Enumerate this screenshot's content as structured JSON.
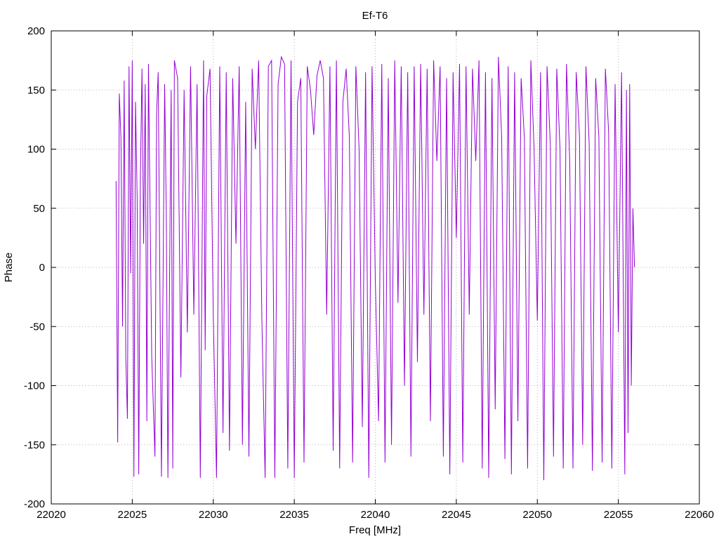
{
  "chart_data": {
    "type": "line",
    "title": "Ef-T6",
    "xlabel": "Freq [MHz]",
    "ylabel": "Phase",
    "xlim": [
      22020,
      22060
    ],
    "ylim": [
      -200,
      200
    ],
    "grid": true,
    "x_ticks": [
      22020,
      22025,
      22030,
      22035,
      22040,
      22045,
      22050,
      22055,
      22060
    ],
    "y_ticks": [
      -200,
      -150,
      -100,
      -50,
      0,
      50,
      100,
      150,
      200
    ],
    "x_tick_labels": [
      "22020",
      "22025",
      "22030",
      "22035",
      "22040",
      "22045",
      "22050",
      "22055",
      "22060"
    ],
    "y_tick_labels": [
      "-200",
      "-150",
      "-100",
      "-50",
      "0",
      "50",
      "100",
      "150",
      "200"
    ],
    "series": [
      {
        "color": "#9400d3",
        "x": [
          22024.0,
          22024.1,
          22024.2,
          22024.3,
          22024.4,
          22024.5,
          22024.6,
          22024.7,
          22024.8,
          22024.9,
          22025.0,
          22025.1,
          22025.2,
          22025.3,
          22025.4,
          22025.5,
          22025.6,
          22025.7,
          22025.8,
          22025.9,
          22026.0,
          22026.2,
          22026.4,
          22026.5,
          22026.6,
          22026.8,
          22027.0,
          22027.1,
          22027.2,
          22027.4,
          22027.5,
          22027.6,
          22027.8,
          22028.0,
          22028.2,
          22028.4,
          22028.6,
          22028.8,
          22029.0,
          22029.2,
          22029.4,
          22029.5,
          22029.6,
          22029.8,
          22030.0,
          22030.2,
          22030.4,
          22030.6,
          22030.8,
          22031.0,
          22031.2,
          22031.4,
          22031.6,
          22031.8,
          22032.0,
          22032.2,
          22032.4,
          22032.6,
          22032.8,
          22033.0,
          22033.2,
          22033.4,
          22033.6,
          22033.8,
          22034.0,
          22034.2,
          22034.4,
          22034.6,
          22034.8,
          22035.0,
          22035.2,
          22035.4,
          22035.6,
          22035.8,
          22036.0,
          22036.2,
          22036.4,
          22036.6,
          22036.8,
          22037.0,
          22037.2,
          22037.4,
          22037.6,
          22037.8,
          22038.0,
          22038.2,
          22038.4,
          22038.6,
          22038.8,
          22039.0,
          22039.2,
          22039.4,
          22039.6,
          22039.8,
          22040.0,
          22040.2,
          22040.4,
          22040.6,
          22040.8,
          22041.0,
          22041.2,
          22041.4,
          22041.6,
          22041.8,
          22042.0,
          22042.2,
          22042.4,
          22042.6,
          22042.8,
          22043.0,
          22043.2,
          22043.4,
          22043.6,
          22043.8,
          22044.0,
          22044.2,
          22044.4,
          22044.6,
          22044.8,
          22045.0,
          22045.2,
          22045.4,
          22045.6,
          22045.8,
          22046.0,
          22046.2,
          22046.4,
          22046.6,
          22046.8,
          22047.0,
          22047.2,
          22047.4,
          22047.6,
          22047.8,
          22048.0,
          22048.2,
          22048.4,
          22048.6,
          22048.8,
          22049.0,
          22049.2,
          22049.4,
          22049.6,
          22049.8,
          22050.0,
          22050.2,
          22050.4,
          22050.6,
          22050.8,
          22051.0,
          22051.2,
          22051.4,
          22051.6,
          22051.8,
          22052.0,
          22052.2,
          22052.4,
          22052.6,
          22052.8,
          22053.0,
          22053.2,
          22053.4,
          22053.6,
          22053.8,
          22054.0,
          22054.2,
          22054.4,
          22054.6,
          22054.8,
          22055.0,
          22055.2,
          22055.4,
          22055.5,
          22055.6,
          22055.7,
          22055.8,
          22055.9,
          22056.0
        ],
        "y": [
          73,
          -148,
          147,
          110,
          -50,
          158,
          -75,
          -128,
          170,
          -5,
          175,
          -177,
          140,
          60,
          -175,
          75,
          168,
          20,
          155,
          -130,
          172,
          -75,
          -160,
          130,
          165,
          -177,
          155,
          45,
          -178,
          150,
          -170,
          175,
          160,
          -93,
          150,
          -55,
          170,
          -40,
          155,
          -178,
          175,
          -70,
          145,
          168,
          -40,
          -178,
          170,
          -140,
          165,
          -155,
          160,
          20,
          170,
          -150,
          140,
          -160,
          168,
          100,
          175,
          -45,
          -178,
          170,
          175,
          -178,
          155,
          178,
          172,
          -170,
          175,
          -178,
          140,
          160,
          -165,
          170,
          150,
          112,
          162,
          175,
          160,
          -40,
          170,
          -155,
          175,
          -170,
          140,
          168,
          110,
          -165,
          170,
          100,
          -135,
          165,
          -178,
          170,
          -10,
          -130,
          172,
          -165,
          160,
          -150,
          175,
          -30,
          170,
          -100,
          165,
          -160,
          170,
          -80,
          172,
          -40,
          168,
          -130,
          175,
          90,
          170,
          -160,
          160,
          -175,
          165,
          25,
          172,
          -165,
          170,
          -40,
          168,
          90,
          175,
          -170,
          165,
          -178,
          160,
          -120,
          178,
          110,
          -162,
          170,
          -175,
          165,
          -130,
          160,
          110,
          -170,
          175,
          100,
          -45,
          165,
          -180,
          170,
          105,
          -160,
          168,
          100,
          -170,
          172,
          90,
          -170,
          165,
          112,
          -150,
          170,
          105,
          -172,
          160,
          110,
          -165,
          168,
          115,
          -170,
          155,
          -55,
          165,
          -175,
          150,
          -140,
          155,
          -100,
          50,
          0
        ]
      }
    ]
  }
}
